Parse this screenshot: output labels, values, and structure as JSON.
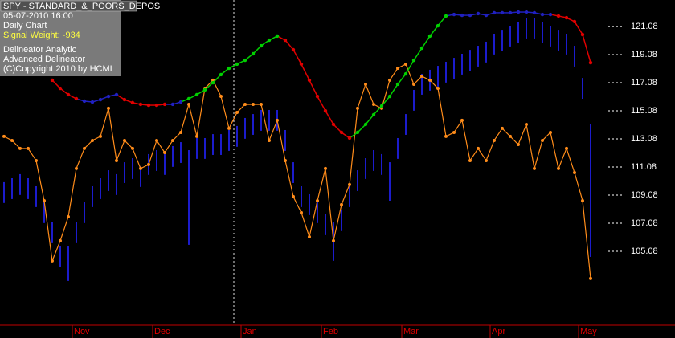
{
  "chart_data": {
    "type": "hilo",
    "title": "SPY - STANDARD_&_POORS_DEPOS",
    "info": [
      "05-07-2010  16:00",
      "Daily Chart",
      "Signal Weight: -934",
      "Delineator Analytic",
      "Advanced Delineator",
      "(C)Copyright 2010 by HCMI"
    ],
    "categories": [
      null,
      null,
      null,
      null,
      null,
      null,
      null,
      null,
      null,
      "Nov",
      null,
      null,
      null,
      null,
      null,
      null,
      null,
      null,
      null,
      "Dec",
      null,
      null,
      null,
      null,
      null,
      null,
      null,
      null,
      null,
      null,
      "Jan",
      null,
      null,
      null,
      null,
      null,
      null,
      null,
      null,
      null,
      "Feb",
      null,
      null,
      null,
      null,
      null,
      null,
      null,
      null,
      null,
      "Mar",
      null,
      null,
      null,
      null,
      null,
      null,
      null,
      null,
      null,
      null,
      "Apr",
      null,
      null,
      null,
      null,
      null,
      null,
      null,
      null,
      null,
      null,
      "May",
      null
    ],
    "ylim": [
      99.82,
      122.97
    ],
    "yticks": [
      105.08,
      107.08,
      109.08,
      111.08,
      113.08,
      115.08,
      117.08,
      119.08,
      121.08
    ],
    "price": {
      "color": "#1c1ccc",
      "high": [
        110.0,
        110.28,
        110.57,
        110.28,
        109.71,
        108.57,
        107.14,
        105.42,
        105.42,
        107.14,
        108.57,
        109.71,
        110.28,
        110.85,
        110.57,
        111.42,
        111.71,
        111.14,
        112.0,
        112.28,
        112.0,
        112.57,
        112.85,
        112.28,
        113.14,
        113.14,
        113.42,
        113.42,
        113.71,
        114.0,
        114.57,
        114.85,
        115.14,
        115.14,
        115.14,
        113.71,
        111.42,
        109.71,
        109.14,
        108.57,
        107.71,
        107.14,
        108.0,
        109.71,
        110.85,
        111.71,
        112.28,
        112.0,
        111.42,
        113.14,
        114.85,
        116.57,
        117.71,
        118.0,
        118.28,
        118.57,
        118.85,
        119.14,
        119.42,
        119.71,
        120.0,
        120.57,
        120.85,
        121.14,
        121.42,
        121.71,
        121.71,
        121.42,
        121.14,
        120.85,
        120.57,
        119.71,
        117.42,
        114.11
      ],
      "low": [
        108.52,
        108.8,
        109.09,
        108.8,
        108.23,
        107.09,
        105.66,
        103.94,
        102.97,
        105.66,
        107.09,
        108.23,
        108.8,
        109.37,
        109.09,
        109.94,
        110.23,
        109.66,
        110.52,
        110.8,
        110.52,
        111.09,
        111.37,
        105.54,
        111.66,
        111.66,
        111.94,
        111.94,
        112.23,
        112.52,
        113.09,
        113.37,
        113.66,
        113.66,
        113.66,
        112.23,
        109.94,
        108.23,
        107.66,
        107.09,
        106.23,
        104.4,
        106.52,
        108.23,
        109.37,
        110.23,
        110.8,
        110.52,
        108.68,
        111.66,
        113.37,
        115.09,
        116.23,
        116.52,
        116.8,
        117.09,
        117.37,
        117.66,
        117.94,
        118.23,
        118.52,
        119.09,
        119.37,
        119.66,
        119.94,
        120.23,
        120.23,
        119.94,
        119.66,
        119.37,
        119.09,
        118.23,
        115.94,
        104.68
      ]
    },
    "delineator": {
      "values": [
        null,
        null,
        null,
        null,
        null,
        null,
        117.26,
        116.68,
        116.23,
        115.94,
        115.77,
        115.71,
        115.88,
        116.11,
        116.23,
        115.88,
        115.66,
        115.54,
        115.48,
        115.48,
        115.54,
        115.54,
        115.71,
        115.94,
        116.23,
        116.57,
        117.08,
        117.66,
        118.11,
        118.4,
        118.68,
        119.14,
        119.71,
        120.11,
        120.4,
        120.11,
        119.43,
        118.4,
        117.26,
        116.11,
        115.08,
        114.11,
        113.54,
        113.14,
        113.54,
        114.11,
        114.8,
        115.43,
        116.11,
        116.97,
        117.71,
        118.68,
        119.54,
        120.4,
        121.14,
        121.83,
        121.94,
        121.88,
        121.88,
        122.0,
        121.88,
        122.06,
        122.06,
        122.06,
        122.11,
        122.11,
        122.06,
        121.94,
        121.94,
        121.83,
        121.71,
        121.43,
        120.51,
        118.51
      ],
      "point_colors": [
        null,
        null,
        null,
        null,
        null,
        null,
        "#e00000",
        "#e00000",
        "#e00000",
        "#e00000",
        "#2020c0",
        "#2020c0",
        "#2020c0",
        "#2020c0",
        "#2020c0",
        "#e00000",
        "#e00000",
        "#e00000",
        "#e00000",
        "#e00000",
        "#e00000",
        "#2020c0",
        "#2020c0",
        "#00d000",
        "#00d000",
        "#00d000",
        "#00d000",
        "#00d000",
        "#00d000",
        "#00d000",
        "#00d000",
        "#00d000",
        "#00d000",
        "#00d000",
        "#00d000",
        "#e00000",
        "#e00000",
        "#e00000",
        "#e00000",
        "#e00000",
        "#e00000",
        "#e00000",
        "#e00000",
        "#e00000",
        "#00d000",
        "#00d000",
        "#00d000",
        "#00d000",
        "#00d000",
        "#00d000",
        "#00d000",
        "#00d000",
        "#00d000",
        "#00d000",
        "#00d000",
        "#00d000",
        "#2020c0",
        "#2020c0",
        "#2020c0",
        "#2020c0",
        "#2020c0",
        "#2020c0",
        "#2020c0",
        "#2020c0",
        "#2020c0",
        "#2020c0",
        "#2020c0",
        "#2020c0",
        "#2020c0",
        "#e00000",
        "#e00000",
        "#e00000",
        "#e00000",
        "#e00000"
      ]
    },
    "oscillator": {
      "color": "#ff8c1a",
      "values": [
        113.26,
        112.97,
        112.4,
        112.4,
        111.54,
        108.68,
        104.4,
        105.83,
        107.54,
        110.97,
        112.4,
        112.97,
        113.26,
        115.26,
        111.54,
        112.97,
        112.4,
        110.97,
        111.26,
        112.97,
        112.11,
        112.97,
        113.54,
        115.54,
        113.26,
        116.68,
        117.26,
        116.11,
        113.83,
        114.97,
        115.54,
        115.54,
        115.54,
        112.97,
        114.4,
        111.54,
        108.97,
        107.83,
        106.11,
        108.68,
        110.97,
        105.83,
        108.4,
        109.83,
        115.26,
        116.97,
        115.54,
        115.26,
        117.26,
        118.11,
        118.4,
        116.97,
        117.54,
        117.26,
        116.68,
        113.26,
        113.54,
        114.4,
        111.54,
        112.4,
        111.54,
        112.97,
        113.83,
        113.26,
        112.68,
        114.11,
        110.97,
        112.97,
        113.54,
        110.97,
        112.4,
        110.68,
        108.68,
        103.14
      ]
    }
  }
}
